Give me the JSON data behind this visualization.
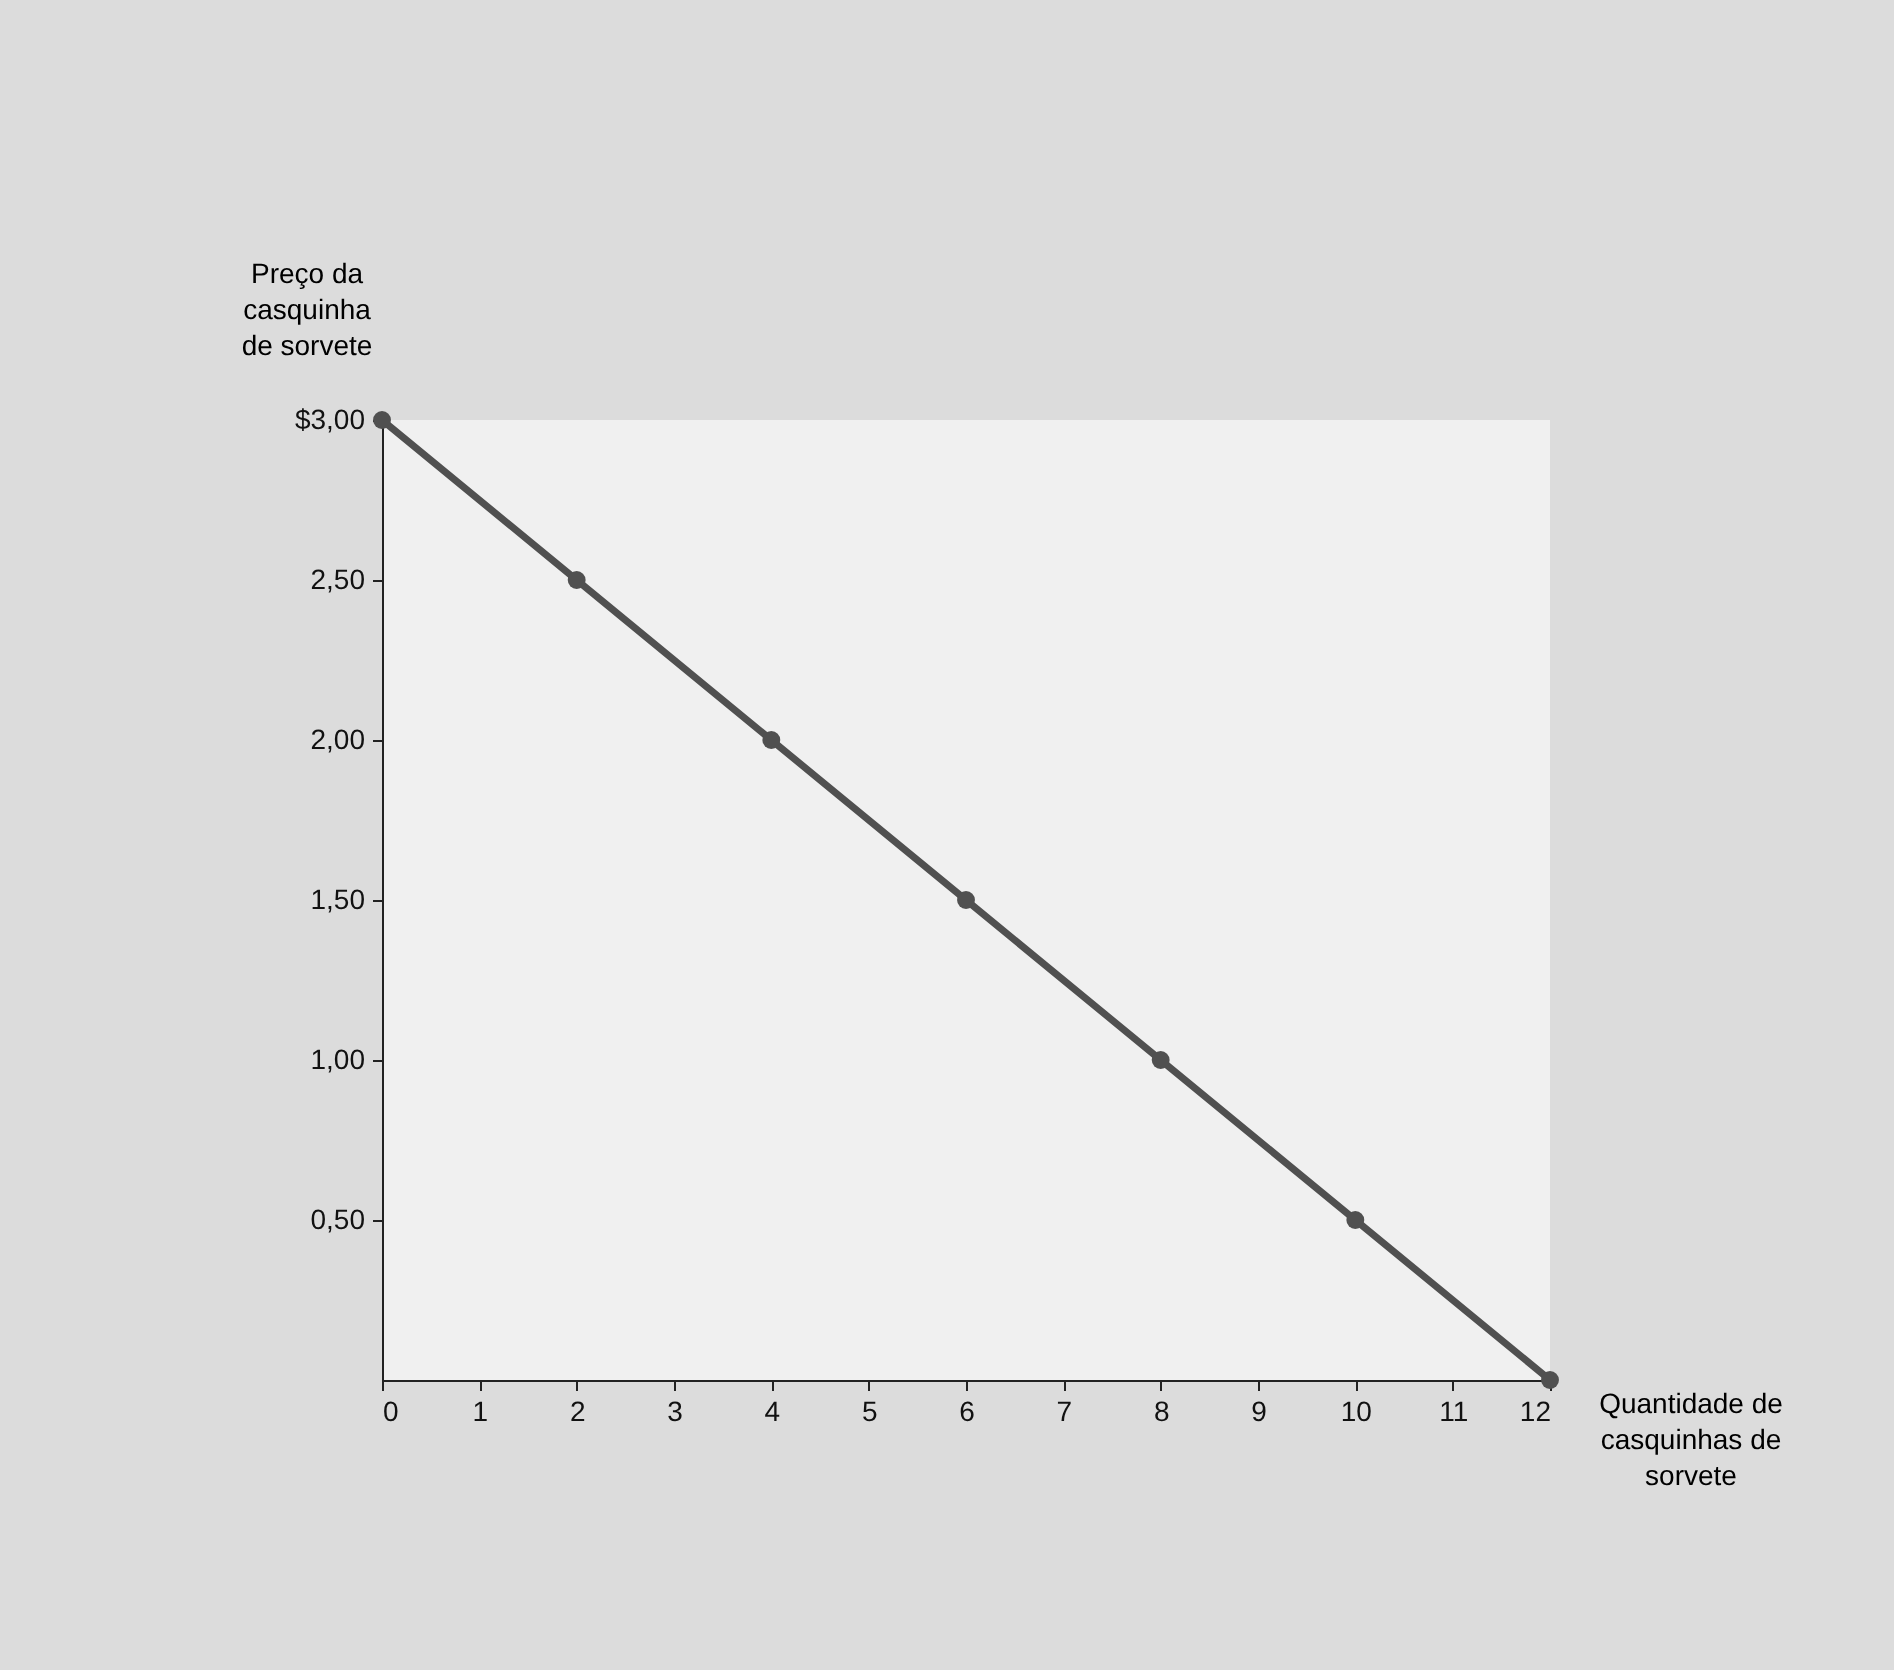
{
  "chart_data": {
    "type": "line",
    "xlabel": "Quantidade de casquinhas de sorvete",
    "ylabel": "Preço da casquinha de sorvete",
    "x": [
      0,
      2,
      4,
      6,
      8,
      10,
      12
    ],
    "series": [
      {
        "color": "#505050",
        "values": [
          3.0,
          2.5,
          2.0,
          1.5,
          1.0,
          0.5,
          0
        ]
      }
    ],
    "xlim": [
      0,
      12
    ],
    "ylim": [
      0,
      3
    ],
    "xticks": [
      0,
      1,
      2,
      3,
      4,
      5,
      6,
      7,
      8,
      9,
      10,
      11,
      12
    ],
    "yticks": [
      {
        "value": 0.5,
        "label": "0,50"
      },
      {
        "value": 1.0,
        "label": "1,00"
      },
      {
        "value": 1.5,
        "label": "1,50"
      },
      {
        "value": 2.0,
        "label": "2,00"
      },
      {
        "value": 2.5,
        "label": "2,50"
      },
      {
        "value": 3.0,
        "label": "$3,00"
      }
    ],
    "marker": "circle",
    "line_style": "solid",
    "grid": false,
    "legend": false
  }
}
